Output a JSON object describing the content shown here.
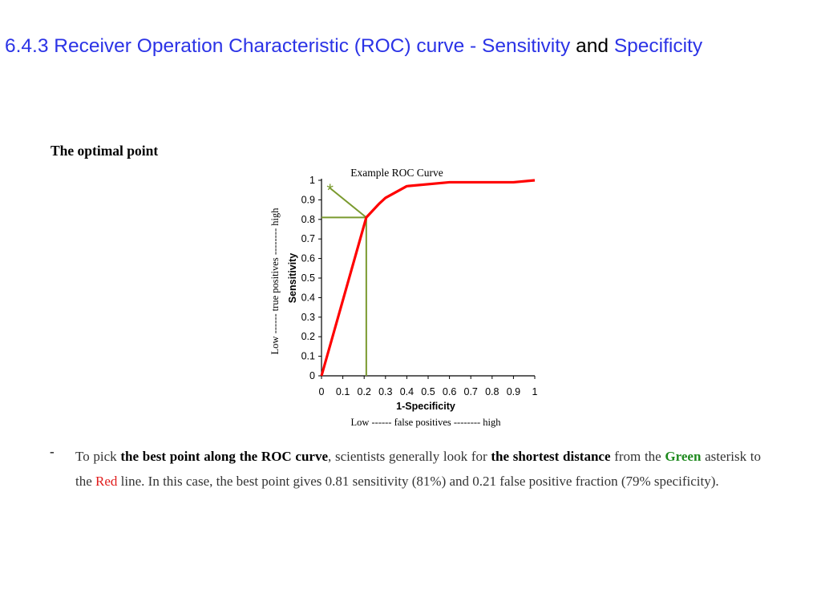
{
  "title": {
    "part1": "6.4.3 Receiver Operation Characteristic (ROC) curve - Sensitivity",
    "part2": "and",
    "part3": "Specificity"
  },
  "heading": "The optimal point",
  "chart_data": {
    "type": "line",
    "title": "Example ROC Curve",
    "xlabel": "1-Specificity",
    "xsublabel": "Low ------    false positives -------- high",
    "ylabel": "Sensitivity",
    "ysublabel": "Low ------  true positives -------- high",
    "xlim": [
      0,
      1
    ],
    "ylim": [
      0,
      1
    ],
    "x_ticks": [
      "0",
      "0.1",
      "0.2",
      "0.3",
      "0.4",
      "0.5",
      "0.6",
      "0.7",
      "0.8",
      "0.9",
      "1"
    ],
    "y_ticks": [
      "0",
      "0.1",
      "0.2",
      "0.3",
      "0.4",
      "0.5",
      "0.6",
      "0.7",
      "0.8",
      "0.9",
      "1"
    ],
    "series": [
      {
        "color": "#ff0000",
        "x": [
          0,
          0.21,
          0.27,
          0.3,
          0.4,
          0.6,
          0.9,
          1
        ],
        "y": [
          0,
          0.81,
          0.88,
          0.91,
          0.97,
          0.99,
          0.99,
          1
        ]
      }
    ],
    "optimal_point": {
      "x": 0.21,
      "y": 0.81
    },
    "asterisk": {
      "x": 0.04,
      "y": 0.96
    },
    "guide_color": "#7a9a2e"
  },
  "paragraph": {
    "bullet": "-",
    "t1": "To pick ",
    "b1": "the best point along the ROC curve",
    "t2": ", scientists generally look for ",
    "b2": "the shortest distance",
    "t3": " from the ",
    "green": "Green",
    "t4": " asterisk to the ",
    "red": "Red",
    "t5": " line. In this case, the best point gives 0.81 sensitivity (81%) and 0.21 false positive fraction (79% specificity)."
  }
}
